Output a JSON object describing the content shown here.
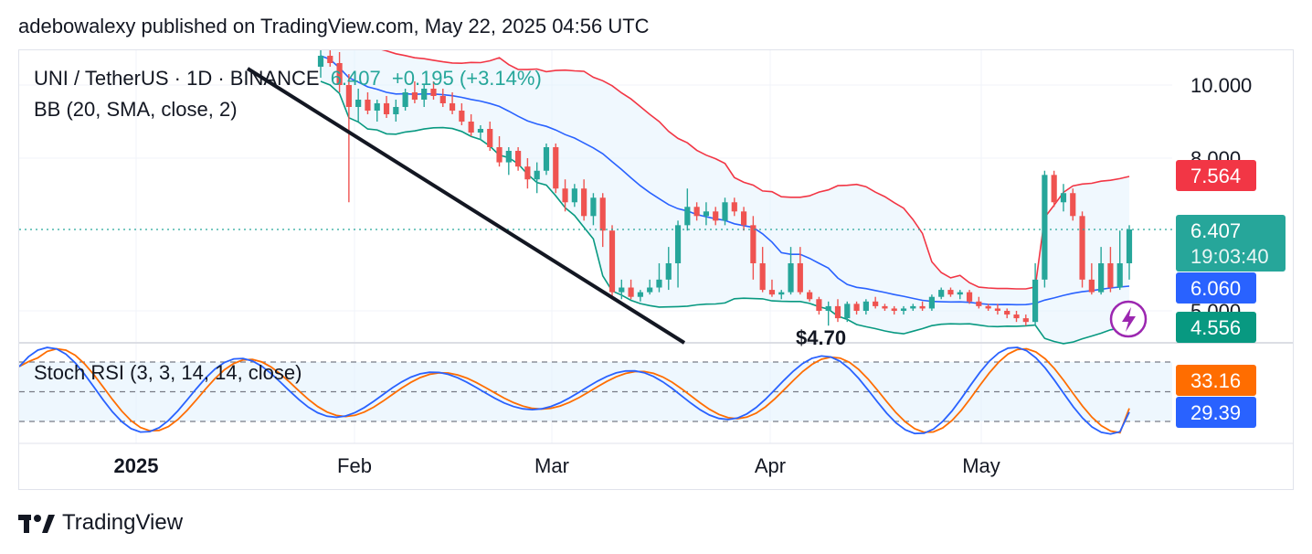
{
  "header": {
    "published": "adebowalexy published on TradingView.com, May 22, 2025 04:56 UTC"
  },
  "legend": {
    "symbol": "UNI / TetherUS · 1D · BINANCE",
    "last": "6.407",
    "change": "+0.195 (+3.14%)",
    "bb": "BB (20, SMA, close, 2)",
    "stoch": "Stoch RSI (3, 3, 14, 14, close)"
  },
  "price_axis": {
    "ticks": [
      "10.000",
      "8.000",
      "5.000"
    ]
  },
  "time_axis": {
    "ticks": [
      "2025",
      "Feb",
      "Mar",
      "Apr",
      "May"
    ]
  },
  "labels": {
    "upper_band": "7.564",
    "last_price": "6.407",
    "countdown": "19:03:40",
    "basis": "6.060",
    "lower_band": "4.556",
    "stoch_d": "33.16",
    "stoch_k": "29.39",
    "low_marker": "$4.70"
  },
  "footer": {
    "brand": "TradingView"
  },
  "colors": {
    "up": "#26a69a",
    "down": "#ef5350",
    "upper_band": "#f23645",
    "basis": "#2962ff",
    "lower_band": "#089981",
    "band_fill": "#e3f2fd",
    "stoch_k": "#2962ff",
    "stoch_d": "#ff6d00",
    "trendline": "#131722"
  },
  "chart_data": {
    "type": "candlestick",
    "title": "UNI / TetherUS · 1D · BINANCE",
    "x": [
      "Jan",
      "Feb",
      "Mar",
      "Apr",
      "May"
    ],
    "y_ticks": [
      10.0,
      8.0,
      5.0
    ],
    "candles": [
      [
        10.5,
        11.0,
        10.2,
        10.8
      ],
      [
        10.8,
        11.4,
        10.5,
        10.6
      ],
      [
        10.6,
        10.9,
        9.8,
        10.0
      ],
      [
        10.0,
        10.3,
        7.0,
        9.4
      ],
      [
        9.4,
        9.9,
        9.0,
        9.6
      ],
      [
        9.6,
        9.8,
        9.2,
        9.3
      ],
      [
        9.3,
        9.6,
        9.0,
        9.5
      ],
      [
        9.5,
        9.7,
        9.1,
        9.2
      ],
      [
        9.2,
        9.6,
        9.0,
        9.4
      ],
      [
        9.4,
        9.9,
        9.3,
        9.8
      ],
      [
        9.8,
        10.1,
        9.5,
        9.6
      ],
      [
        9.6,
        10.0,
        9.4,
        9.9
      ],
      [
        9.9,
        10.1,
        9.6,
        9.7
      ],
      [
        9.7,
        9.9,
        9.4,
        9.5
      ],
      [
        9.5,
        9.8,
        9.2,
        9.3
      ],
      [
        9.3,
        9.5,
        8.9,
        9.0
      ],
      [
        9.0,
        9.2,
        8.6,
        8.7
      ],
      [
        8.7,
        8.9,
        8.5,
        8.8
      ],
      [
        8.8,
        9.0,
        8.2,
        8.3
      ],
      [
        8.3,
        8.6,
        7.8,
        7.9
      ],
      [
        7.9,
        8.3,
        7.6,
        8.2
      ],
      [
        8.2,
        8.3,
        7.7,
        7.8
      ],
      [
        7.8,
        8.0,
        7.3,
        7.5
      ],
      [
        7.5,
        7.9,
        7.2,
        7.7
      ],
      [
        7.7,
        8.4,
        7.6,
        8.3
      ],
      [
        8.3,
        8.4,
        7.2,
        7.3
      ],
      [
        7.3,
        7.5,
        6.8,
        7.0
      ],
      [
        7.0,
        7.4,
        6.9,
        7.3
      ],
      [
        7.3,
        7.5,
        6.6,
        6.7
      ],
      [
        6.7,
        7.2,
        6.5,
        7.1
      ],
      [
        7.1,
        7.2,
        6.3,
        6.4
      ],
      [
        6.4,
        6.5,
        5.6,
        5.8
      ],
      [
        5.8,
        6.1,
        5.5,
        6.0
      ],
      [
        6.0,
        6.1,
        5.5,
        5.6
      ],
      [
        5.6,
        5.9,
        5.4,
        5.8
      ],
      [
        5.8,
        6.1,
        5.7,
        6.0
      ],
      [
        6.0,
        6.2,
        5.8,
        6.1
      ],
      [
        6.1,
        6.3,
        5.9,
        6.2
      ],
      [
        6.2,
        6.6,
        6.0,
        6.5
      ],
      [
        6.5,
        7.3,
        6.4,
        6.9
      ],
      [
        6.9,
        7.0,
        6.6,
        6.7
      ],
      [
        6.7,
        7.0,
        6.5,
        6.8
      ],
      [
        6.8,
        6.9,
        6.5,
        6.6
      ],
      [
        6.6,
        7.1,
        6.5,
        7.0
      ],
      [
        7.0,
        7.1,
        6.7,
        6.8
      ],
      [
        6.8,
        6.9,
        6.4,
        6.5
      ],
      [
        6.5,
        6.7,
        6.1,
        6.2
      ],
      [
        6.2,
        6.3,
        5.8,
        5.9
      ],
      [
        5.9,
        6.1,
        5.6,
        5.7
      ],
      [
        5.7,
        5.9,
        5.5,
        5.8
      ],
      [
        5.8,
        6.3,
        5.7,
        6.2
      ],
      [
        6.2,
        6.3,
        5.7,
        5.8
      ],
      [
        5.8,
        5.9,
        5.4,
        5.5
      ],
      [
        5.5,
        5.6,
        4.9,
        5.0
      ],
      [
        5.0,
        5.4,
        4.6,
        5.2
      ],
      [
        5.2,
        5.5,
        4.7,
        4.8
      ],
      [
        4.8,
        5.4,
        4.7,
        5.3
      ],
      [
        5.3,
        5.4,
        4.9,
        5.0
      ],
      [
        5.0,
        5.5,
        4.9,
        5.4
      ],
      [
        5.4,
        5.6,
        5.1,
        5.2
      ],
      [
        5.2,
        5.3,
        5.0,
        5.1
      ],
      [
        5.1,
        5.2,
        4.9,
        5.0
      ],
      [
        5.0,
        5.2,
        4.9,
        5.1
      ],
      [
        5.1,
        5.3,
        5.0,
        5.2
      ],
      [
        5.2,
        5.4,
        5.0,
        5.1
      ],
      [
        5.1,
        5.7,
        5.0,
        5.6
      ],
      [
        5.6,
        6.0,
        5.5,
        5.9
      ],
      [
        5.9,
        6.0,
        5.6,
        5.7
      ],
      [
        5.7,
        5.9,
        5.5,
        5.8
      ],
      [
        5.8,
        5.9,
        5.3,
        5.4
      ],
      [
        5.4,
        5.6,
        5.1,
        5.2
      ],
      [
        5.2,
        5.3,
        5.0,
        5.1
      ],
      [
        5.1,
        5.3,
        4.9,
        5.0
      ],
      [
        5.0,
        5.1,
        4.8,
        4.9
      ],
      [
        4.9,
        5.0,
        4.7,
        4.8
      ],
      [
        4.8,
        4.9,
        4.6,
        4.7
      ],
      [
        4.7,
        6.2,
        4.6,
        6.1
      ],
      [
        6.1,
        7.7,
        6.0,
        7.6
      ],
      [
        7.6,
        7.7,
        6.9,
        7.0
      ],
      [
        7.0,
        7.4,
        6.8,
        7.2
      ],
      [
        7.2,
        7.3,
        6.6,
        6.7
      ],
      [
        6.7,
        6.8,
        6.0,
        6.1
      ],
      [
        6.1,
        6.2,
        5.7,
        5.8
      ],
      [
        5.8,
        6.3,
        5.7,
        6.2
      ],
      [
        6.2,
        6.3,
        5.8,
        6.0
      ],
      [
        6.0,
        6.4,
        5.9,
        6.2
      ],
      [
        6.2,
        6.5,
        6.1,
        6.407
      ]
    ],
    "upper_band": [
      7.564
    ],
    "basis": [
      6.06
    ],
    "lower_band": [
      4.556
    ],
    "last": 6.407,
    "stoch_rsi": {
      "k": 29.39,
      "d": 33.16
    }
  }
}
